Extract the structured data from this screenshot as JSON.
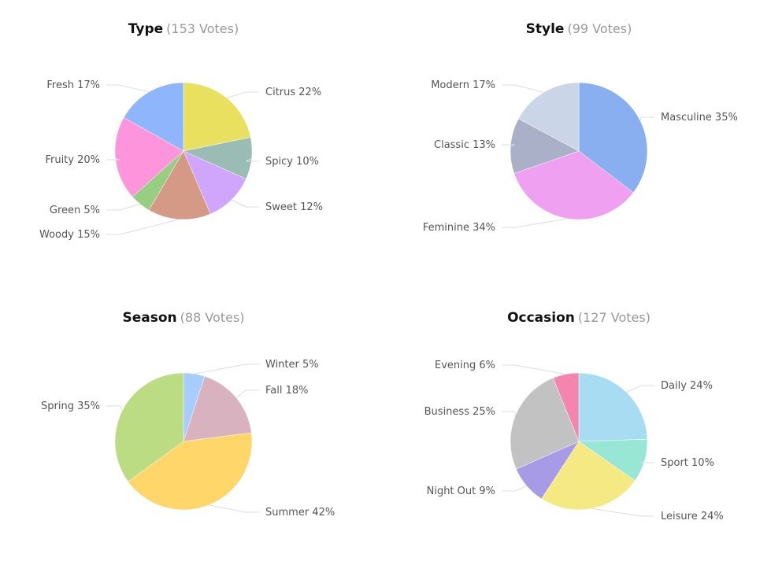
{
  "chart_data": [
    {
      "type": "pie",
      "title": "Type",
      "votes": "(153 Votes)",
      "slices": [
        {
          "label": "Citrus",
          "value": 22,
          "text": "Citrus 22%",
          "color": "#e8e05e"
        },
        {
          "label": "Spicy",
          "value": 10,
          "text": "Spicy 10%",
          "color": "#9bbbb5"
        },
        {
          "label": "Sweet",
          "value": 12,
          "text": "Sweet 12%",
          "color": "#d0a6fc"
        },
        {
          "label": "Woody",
          "value": 15,
          "text": "Woody 15%",
          "color": "#d49a85"
        },
        {
          "label": "Green",
          "value": 5,
          "text": "Green 5%",
          "color": "#98ce82"
        },
        {
          "label": "Fruity",
          "value": 20,
          "text": "Fruity 20%",
          "color": "#fd94dc"
        },
        {
          "label": "Fresh",
          "value": 17,
          "text": "Fresh 17%",
          "color": "#8fb5fc"
        }
      ]
    },
    {
      "type": "pie",
      "title": "Style",
      "votes": "(99 Votes)",
      "slices": [
        {
          "label": "Masculine",
          "value": 35,
          "text": "Masculine 35%",
          "color": "#8aaff0"
        },
        {
          "label": "Feminine",
          "value": 34,
          "text": "Feminine 34%",
          "color": "#f0a0f0"
        },
        {
          "label": "Classic",
          "value": 13,
          "text": "Classic 13%",
          "color": "#aab0c8"
        },
        {
          "label": "Modern",
          "value": 17,
          "text": "Modern 17%",
          "color": "#cbd5e8"
        }
      ]
    },
    {
      "type": "pie",
      "title": "Season",
      "votes": "(88 Votes)",
      "slices": [
        {
          "label": "Winter",
          "value": 5,
          "text": "Winter 5%",
          "color": "#a6cdfd"
        },
        {
          "label": "Fall",
          "value": 18,
          "text": "Fall 18%",
          "color": "#d9b2bf"
        },
        {
          "label": "Summer",
          "value": 42,
          "text": "Summer 42%",
          "color": "#ffd66a"
        },
        {
          "label": "Spring",
          "value": 35,
          "text": "Spring 35%",
          "color": "#bbdc82"
        }
      ]
    },
    {
      "type": "pie",
      "title": "Occasion",
      "votes": "(127 Votes)",
      "slices": [
        {
          "label": "Daily",
          "value": 24,
          "text": "Daily 24%",
          "color": "#a8dcf2"
        },
        {
          "label": "Sport",
          "value": 10,
          "text": "Sport 10%",
          "color": "#98e6d4"
        },
        {
          "label": "Leisure",
          "value": 24,
          "text": "Leisure 24%",
          "color": "#f5e984"
        },
        {
          "label": "Night Out",
          "value": 9,
          "text": "Night Out 9%",
          "color": "#a79ae6"
        },
        {
          "label": "Business",
          "value": 25,
          "text": "Business 25%",
          "color": "#c2c2c2"
        },
        {
          "label": "Evening",
          "value": 6,
          "text": "Evening 6%",
          "color": "#f385ae"
        }
      ]
    }
  ]
}
